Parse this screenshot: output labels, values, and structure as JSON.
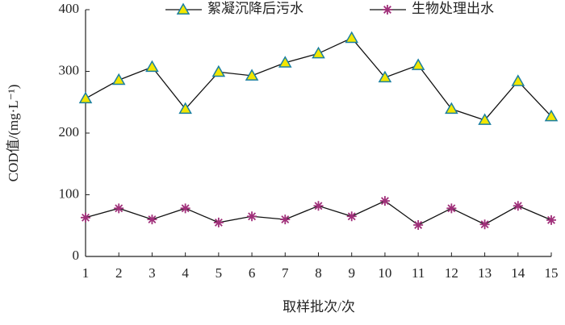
{
  "chart_data": {
    "type": "line",
    "x_label": "取样批次/次",
    "y_label": "COD值/(mg·L⁻¹)",
    "x": [
      1,
      2,
      3,
      4,
      5,
      6,
      7,
      8,
      9,
      10,
      11,
      12,
      13,
      14,
      15
    ],
    "series": [
      {
        "name": "絮凝沉降后污水",
        "color": "#f2e600",
        "marker": "triangle",
        "values": [
          256,
          286,
          307,
          239,
          299,
          293,
          314,
          329,
          354,
          290,
          310,
          239,
          221,
          284,
          227
        ]
      },
      {
        "name": "生物处理出水",
        "color": "#a0307a",
        "marker": "asterisk",
        "values": [
          63,
          78,
          60,
          78,
          55,
          65,
          60,
          82,
          65,
          90,
          51,
          78,
          52,
          82,
          59
        ]
      }
    ],
    "xlim": [
      1,
      15
    ],
    "xticks": [
      1,
      2,
      3,
      4,
      5,
      6,
      7,
      8,
      9,
      10,
      11,
      12,
      13,
      14,
      15
    ],
    "ylim": [
      0,
      400
    ],
    "yticks": [
      0,
      100,
      200,
      300,
      400
    ],
    "grid": false,
    "legend": "top"
  }
}
